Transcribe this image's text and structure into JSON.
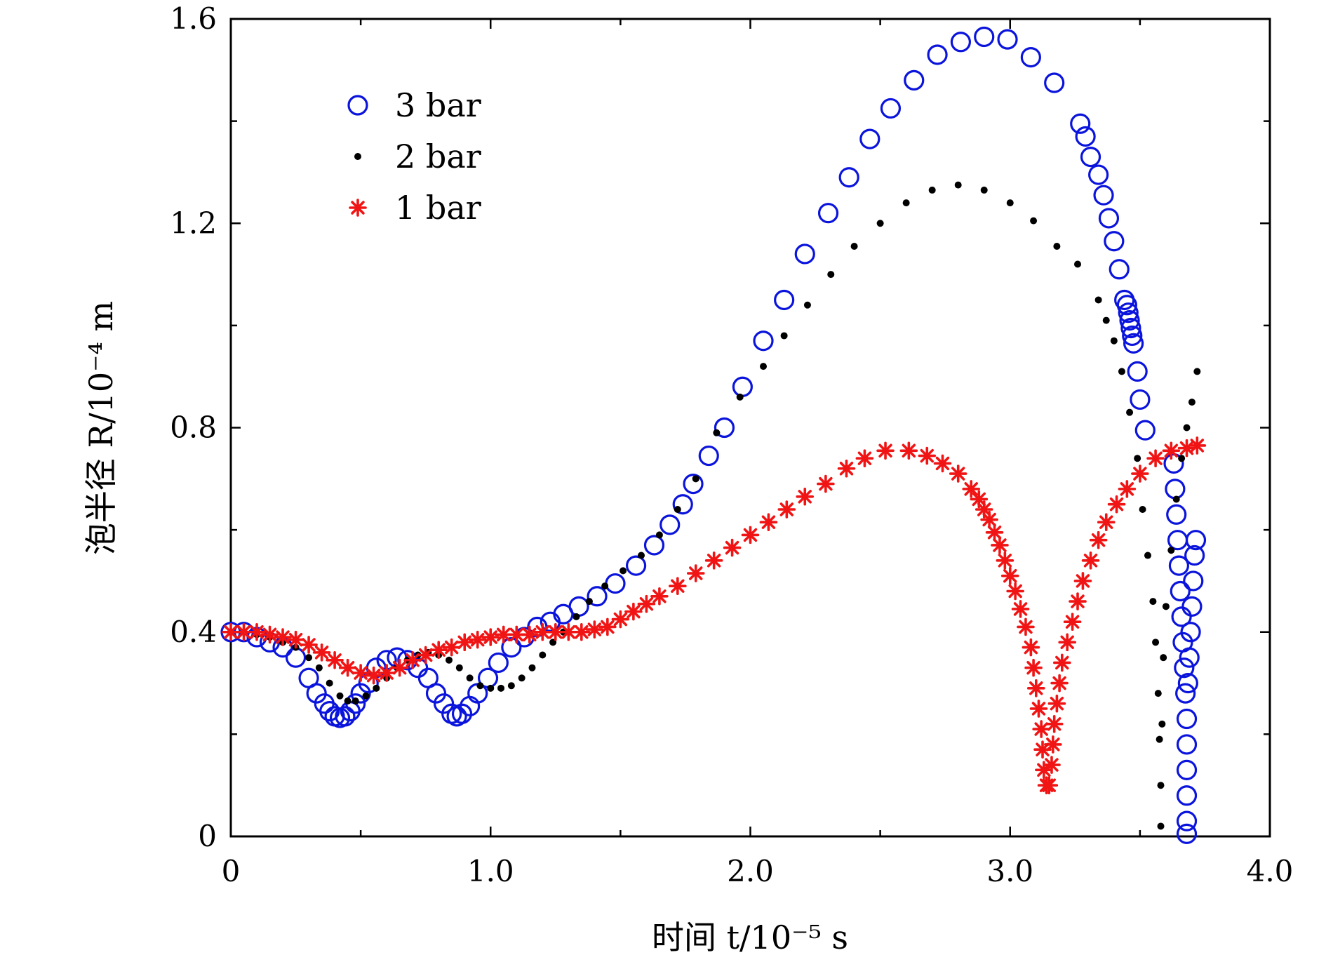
{
  "chart_data": {
    "type": "scatter",
    "title": "",
    "xlabel": "时间 t/10⁻⁵ s",
    "ylabel": "泡半径 R/10⁻⁴ m",
    "xlim": [
      0,
      4.0
    ],
    "ylim": [
      0,
      1.6
    ],
    "xticks": [
      0,
      0.5,
      1.0,
      1.5,
      2.0,
      2.5,
      3.0,
      3.5,
      4.0
    ],
    "xtick_labels": [
      "0",
      "",
      "1.0",
      "",
      "2.0",
      "",
      "3.0",
      "",
      "4.0"
    ],
    "yticks": [
      0,
      0.2,
      0.4,
      0.6,
      0.8,
      1.0,
      1.2,
      1.4,
      1.6
    ],
    "ytick_labels": [
      "0",
      "",
      "0.4",
      "",
      "0.8",
      "",
      "1.2",
      "",
      "1.6"
    ],
    "grid": false,
    "legend_position": "top-left",
    "series": [
      {
        "name": "3 bar",
        "marker": "open-circle",
        "color": "#0a14dc",
        "points": [
          [
            0.0,
            0.4
          ],
          [
            0.05,
            0.4
          ],
          [
            0.1,
            0.39
          ],
          [
            0.15,
            0.38
          ],
          [
            0.2,
            0.37
          ],
          [
            0.25,
            0.35
          ],
          [
            0.3,
            0.31
          ],
          [
            0.33,
            0.28
          ],
          [
            0.36,
            0.26
          ],
          [
            0.38,
            0.245
          ],
          [
            0.4,
            0.235
          ],
          [
            0.42,
            0.232
          ],
          [
            0.44,
            0.235
          ],
          [
            0.46,
            0.245
          ],
          [
            0.48,
            0.26
          ],
          [
            0.5,
            0.28
          ],
          [
            0.53,
            0.3
          ],
          [
            0.56,
            0.33
          ],
          [
            0.6,
            0.345
          ],
          [
            0.64,
            0.35
          ],
          [
            0.68,
            0.345
          ],
          [
            0.72,
            0.33
          ],
          [
            0.76,
            0.31
          ],
          [
            0.79,
            0.28
          ],
          [
            0.82,
            0.26
          ],
          [
            0.85,
            0.24
          ],
          [
            0.87,
            0.235
          ],
          [
            0.89,
            0.24
          ],
          [
            0.92,
            0.255
          ],
          [
            0.95,
            0.28
          ],
          [
            0.99,
            0.31
          ],
          [
            1.03,
            0.34
          ],
          [
            1.08,
            0.37
          ],
          [
            1.13,
            0.39
          ],
          [
            1.18,
            0.41
          ],
          [
            1.23,
            0.42
          ],
          [
            1.28,
            0.435
          ],
          [
            1.34,
            0.45
          ],
          [
            1.41,
            0.47
          ],
          [
            1.48,
            0.495
          ],
          [
            1.56,
            0.53
          ],
          [
            1.63,
            0.57
          ],
          [
            1.69,
            0.61
          ],
          [
            1.74,
            0.65
          ],
          [
            1.78,
            0.69
          ],
          [
            1.84,
            0.745
          ],
          [
            1.9,
            0.8
          ],
          [
            1.97,
            0.88
          ],
          [
            2.05,
            0.97
          ],
          [
            2.13,
            1.05
          ],
          [
            2.21,
            1.14
          ],
          [
            2.3,
            1.22
          ],
          [
            2.38,
            1.29
          ],
          [
            2.46,
            1.365
          ],
          [
            2.54,
            1.425
          ],
          [
            2.63,
            1.48
          ],
          [
            2.72,
            1.53
          ],
          [
            2.81,
            1.555
          ],
          [
            2.9,
            1.565
          ],
          [
            2.99,
            1.56
          ],
          [
            3.08,
            1.525
          ],
          [
            3.17,
            1.475
          ],
          [
            3.27,
            1.395
          ],
          [
            3.29,
            1.37
          ],
          [
            3.31,
            1.33
          ],
          [
            3.34,
            1.295
          ],
          [
            3.36,
            1.255
          ],
          [
            3.38,
            1.21
          ],
          [
            3.4,
            1.165
          ],
          [
            3.42,
            1.11
          ],
          [
            3.44,
            1.05
          ],
          [
            3.45,
            1.04
          ],
          [
            3.455,
            1.025
          ],
          [
            3.46,
            1.01
          ],
          [
            3.465,
            0.995
          ],
          [
            3.47,
            0.98
          ],
          [
            3.475,
            0.965
          ],
          [
            3.49,
            0.91
          ],
          [
            3.5,
            0.855
          ],
          [
            3.52,
            0.795
          ],
          [
            3.63,
            0.73
          ],
          [
            3.635,
            0.68
          ],
          [
            3.64,
            0.63
          ],
          [
            3.645,
            0.58
          ],
          [
            3.65,
            0.53
          ],
          [
            3.655,
            0.48
          ],
          [
            3.66,
            0.43
          ],
          [
            3.665,
            0.38
          ],
          [
            3.67,
            0.33
          ],
          [
            3.675,
            0.28
          ],
          [
            3.68,
            0.23
          ],
          [
            3.68,
            0.18
          ],
          [
            3.68,
            0.13
          ],
          [
            3.68,
            0.08
          ],
          [
            3.68,
            0.03
          ],
          [
            3.68,
            0.005
          ],
          [
            3.685,
            0.3
          ],
          [
            3.69,
            0.35
          ],
          [
            3.695,
            0.4
          ],
          [
            3.7,
            0.45
          ],
          [
            3.705,
            0.5
          ],
          [
            3.71,
            0.55
          ],
          [
            3.715,
            0.58
          ]
        ]
      },
      {
        "name": "2 bar",
        "marker": "dot",
        "color": "#000000",
        "points": [
          [
            0.0,
            0.4
          ],
          [
            0.05,
            0.4
          ],
          [
            0.1,
            0.395
          ],
          [
            0.15,
            0.39
          ],
          [
            0.2,
            0.38
          ],
          [
            0.25,
            0.37
          ],
          [
            0.3,
            0.35
          ],
          [
            0.34,
            0.33
          ],
          [
            0.38,
            0.3
          ],
          [
            0.42,
            0.275
          ],
          [
            0.45,
            0.265
          ],
          [
            0.48,
            0.265
          ],
          [
            0.52,
            0.275
          ],
          [
            0.56,
            0.29
          ],
          [
            0.6,
            0.31
          ],
          [
            0.64,
            0.33
          ],
          [
            0.68,
            0.345
          ],
          [
            0.72,
            0.355
          ],
          [
            0.76,
            0.36
          ],
          [
            0.8,
            0.355
          ],
          [
            0.84,
            0.345
          ],
          [
            0.88,
            0.33
          ],
          [
            0.92,
            0.31
          ],
          [
            0.96,
            0.295
          ],
          [
            1.0,
            0.29
          ],
          [
            1.04,
            0.29
          ],
          [
            1.08,
            0.295
          ],
          [
            1.12,
            0.31
          ],
          [
            1.16,
            0.33
          ],
          [
            1.2,
            0.355
          ],
          [
            1.24,
            0.38
          ],
          [
            1.28,
            0.4
          ],
          [
            1.33,
            0.43
          ],
          [
            1.38,
            0.46
          ],
          [
            1.44,
            0.49
          ],
          [
            1.51,
            0.52
          ],
          [
            1.58,
            0.55
          ],
          [
            1.65,
            0.59
          ],
          [
            1.72,
            0.64
          ],
          [
            1.79,
            0.7
          ],
          [
            1.87,
            0.79
          ],
          [
            1.96,
            0.86
          ],
          [
            2.05,
            0.92
          ],
          [
            2.13,
            0.98
          ],
          [
            2.22,
            1.04
          ],
          [
            2.31,
            1.1
          ],
          [
            2.4,
            1.155
          ],
          [
            2.5,
            1.2
          ],
          [
            2.6,
            1.24
          ],
          [
            2.7,
            1.265
          ],
          [
            2.8,
            1.275
          ],
          [
            2.9,
            1.265
          ],
          [
            3.0,
            1.24
          ],
          [
            3.09,
            1.205
          ],
          [
            3.18,
            1.155
          ],
          [
            3.26,
            1.12
          ],
          [
            3.34,
            1.05
          ],
          [
            3.37,
            1.01
          ],
          [
            3.4,
            0.97
          ],
          [
            3.43,
            0.91
          ],
          [
            3.46,
            0.83
          ],
          [
            3.49,
            0.74
          ],
          [
            3.51,
            0.64
          ],
          [
            3.53,
            0.55
          ],
          [
            3.55,
            0.46
          ],
          [
            3.56,
            0.38
          ],
          [
            3.57,
            0.28
          ],
          [
            3.575,
            0.19
          ],
          [
            3.58,
            0.1
          ],
          [
            3.58,
            0.02
          ],
          [
            3.585,
            0.22
          ],
          [
            3.59,
            0.35
          ],
          [
            3.6,
            0.45
          ],
          [
            3.62,
            0.56
          ],
          [
            3.64,
            0.66
          ],
          [
            3.66,
            0.74
          ],
          [
            3.68,
            0.8
          ],
          [
            3.7,
            0.85
          ],
          [
            3.72,
            0.91
          ]
        ]
      },
      {
        "name": "1 bar",
        "marker": "asterisk",
        "color": "#f01414",
        "points": [
          [
            0.0,
            0.4
          ],
          [
            0.05,
            0.4
          ],
          [
            0.1,
            0.4
          ],
          [
            0.15,
            0.395
          ],
          [
            0.2,
            0.39
          ],
          [
            0.25,
            0.385
          ],
          [
            0.3,
            0.375
          ],
          [
            0.35,
            0.36
          ],
          [
            0.4,
            0.345
          ],
          [
            0.45,
            0.33
          ],
          [
            0.5,
            0.32
          ],
          [
            0.55,
            0.315
          ],
          [
            0.6,
            0.32
          ],
          [
            0.65,
            0.33
          ],
          [
            0.7,
            0.345
          ],
          [
            0.75,
            0.355
          ],
          [
            0.8,
            0.365
          ],
          [
            0.85,
            0.37
          ],
          [
            0.9,
            0.38
          ],
          [
            0.95,
            0.385
          ],
          [
            1.0,
            0.39
          ],
          [
            1.05,
            0.395
          ],
          [
            1.1,
            0.395
          ],
          [
            1.15,
            0.395
          ],
          [
            1.2,
            0.4
          ],
          [
            1.25,
            0.4
          ],
          [
            1.3,
            0.4
          ],
          [
            1.35,
            0.4
          ],
          [
            1.4,
            0.405
          ],
          [
            1.45,
            0.41
          ],
          [
            1.5,
            0.425
          ],
          [
            1.55,
            0.44
          ],
          [
            1.6,
            0.455
          ],
          [
            1.65,
            0.47
          ],
          [
            1.72,
            0.49
          ],
          [
            1.79,
            0.515
          ],
          [
            1.86,
            0.54
          ],
          [
            1.93,
            0.565
          ],
          [
            2.0,
            0.59
          ],
          [
            2.07,
            0.615
          ],
          [
            2.14,
            0.64
          ],
          [
            2.21,
            0.665
          ],
          [
            2.29,
            0.69
          ],
          [
            2.37,
            0.72
          ],
          [
            2.44,
            0.74
          ],
          [
            2.52,
            0.755
          ],
          [
            2.61,
            0.755
          ],
          [
            2.68,
            0.745
          ],
          [
            2.74,
            0.73
          ],
          [
            2.8,
            0.71
          ],
          [
            2.85,
            0.68
          ],
          [
            2.88,
            0.66
          ],
          [
            2.9,
            0.64
          ],
          [
            2.92,
            0.62
          ],
          [
            2.94,
            0.595
          ],
          [
            2.96,
            0.57
          ],
          [
            2.98,
            0.54
          ],
          [
            3.0,
            0.51
          ],
          [
            3.02,
            0.48
          ],
          [
            3.04,
            0.445
          ],
          [
            3.06,
            0.41
          ],
          [
            3.08,
            0.37
          ],
          [
            3.09,
            0.33
          ],
          [
            3.1,
            0.29
          ],
          [
            3.11,
            0.25
          ],
          [
            3.12,
            0.21
          ],
          [
            3.125,
            0.17
          ],
          [
            3.13,
            0.13
          ],
          [
            3.14,
            0.1
          ],
          [
            3.15,
            0.1
          ],
          [
            3.16,
            0.14
          ],
          [
            3.165,
            0.18
          ],
          [
            3.17,
            0.22
          ],
          [
            3.18,
            0.26
          ],
          [
            3.19,
            0.3
          ],
          [
            3.2,
            0.34
          ],
          [
            3.22,
            0.38
          ],
          [
            3.24,
            0.42
          ],
          [
            3.26,
            0.46
          ],
          [
            3.28,
            0.5
          ],
          [
            3.31,
            0.54
          ],
          [
            3.34,
            0.58
          ],
          [
            3.37,
            0.615
          ],
          [
            3.41,
            0.65
          ],
          [
            3.45,
            0.68
          ],
          [
            3.5,
            0.71
          ],
          [
            3.56,
            0.74
          ],
          [
            3.62,
            0.755
          ],
          [
            3.68,
            0.76
          ],
          [
            3.72,
            0.765
          ]
        ]
      }
    ]
  }
}
